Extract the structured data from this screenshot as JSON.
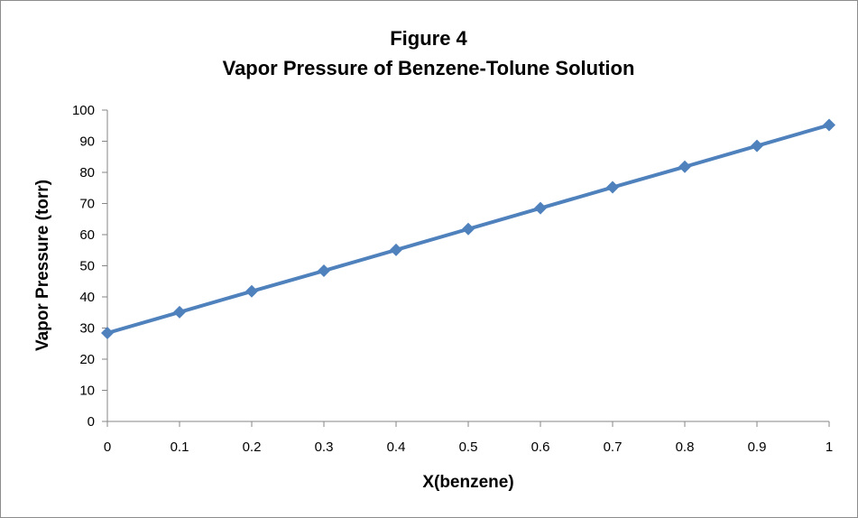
{
  "chart_data": {
    "type": "line",
    "title": "Figure 4",
    "subtitle": "Vapor Pressure of Benzene-Tolune Solution",
    "xlabel": "X(benzene)",
    "ylabel": "Vapor Pressure (torr)",
    "xlim": [
      0,
      1
    ],
    "ylim": [
      0,
      100
    ],
    "x_ticks": [
      "0",
      "0.1",
      "0.2",
      "0.3",
      "0.4",
      "0.5",
      "0.6",
      "0.7",
      "0.8",
      "0.9",
      "1"
    ],
    "y_ticks": [
      "0",
      "10",
      "20",
      "30",
      "40",
      "50",
      "60",
      "70",
      "80",
      "90",
      "100"
    ],
    "grid": false,
    "legend": "none",
    "series": [
      {
        "color": "#4f81bd",
        "marker": "diamond",
        "x": [
          0,
          0.1,
          0.2,
          0.3,
          0.4,
          0.5,
          0.6,
          0.7,
          0.8,
          0.9,
          1
        ],
        "y": [
          28.4,
          35.1,
          41.8,
          48.4,
          55.1,
          61.8,
          68.5,
          75.2,
          81.8,
          88.5,
          95.2
        ]
      }
    ]
  }
}
